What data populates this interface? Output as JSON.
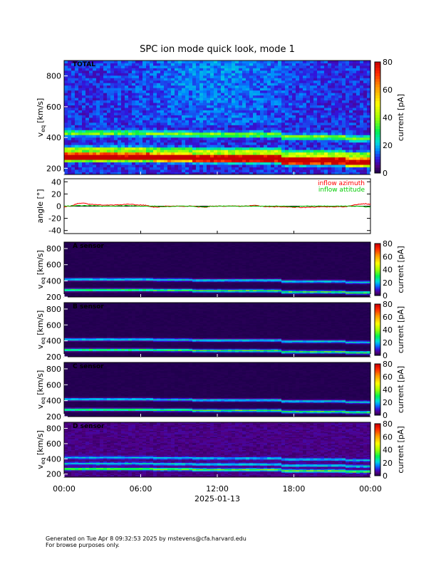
{
  "chart_data": {
    "type": "heatmap",
    "title": "SPC ion mode quick look, mode 1",
    "x_axis": {
      "label": "2025-01-13",
      "range_hours": [
        0,
        24
      ],
      "tick_hours": [
        0,
        6,
        12,
        18,
        24
      ],
      "tick_labels": [
        "00:00",
        "06:00",
        "12:00",
        "18:00",
        "00:00"
      ]
    },
    "panels": [
      {
        "id": "total",
        "type": "heatmap",
        "label": "TOTAL",
        "ylabel": "v",
        "ylabel_sub": "eq",
        "ylabel_unit": "[km/s]",
        "ylim": [
          160,
          900
        ],
        "yticks": [
          200,
          400,
          600,
          800
        ],
        "colorbar": {
          "label": "current [pA]",
          "range": [
            0,
            80
          ],
          "ticks": [
            0,
            20,
            40,
            60,
            80
          ]
        },
        "bands": [
          {
            "v": 265,
            "level": 76
          },
          {
            "v": 290,
            "level": 64
          },
          {
            "v": 325,
            "level": 32
          },
          {
            "v": 430,
            "level": 28
          }
        ],
        "background_level": 11
      },
      {
        "id": "angle",
        "type": "line",
        "ylabel": "angle [°]",
        "ylim": [
          -45,
          45
        ],
        "yticks": [
          -40,
          -20,
          0,
          20,
          40
        ],
        "series": [
          {
            "name": "inflow azimuth",
            "color": "#ff0000",
            "x": [
              0,
              0.5,
              1,
              1.5,
              2,
              3,
              4,
              5,
              6,
              6.5,
              7,
              7.5,
              8,
              9,
              10,
              11,
              11.5,
              12,
              13,
              14,
              15,
              16,
              17,
              18,
              19,
              20,
              21,
              22,
              22.5,
              23,
              23.5,
              24
            ],
            "y": [
              -1,
              0,
              4,
              5,
              3,
              2,
              2,
              3,
              2,
              1,
              -2,
              -1,
              0,
              0,
              0,
              -2,
              0,
              0,
              0,
              0,
              1,
              -1,
              -1,
              -2,
              -2,
              -1,
              -1,
              -1,
              1,
              3,
              4,
              3
            ]
          },
          {
            "name": "inflow attitude",
            "color": "#00cc00",
            "x": [
              0,
              1,
              2,
              3,
              4,
              5,
              6,
              7,
              8,
              9,
              10,
              11,
              12,
              13,
              14,
              15,
              16,
              17,
              18,
              19,
              20,
              21,
              22,
              23,
              24
            ],
            "y": [
              0,
              1,
              1,
              0,
              0,
              1,
              0,
              0,
              -1,
              0,
              0,
              -1,
              0,
              0,
              0,
              0,
              0,
              0,
              -1,
              0,
              0,
              0,
              0,
              0,
              -2
            ]
          }
        ]
      },
      {
        "id": "sensor-a",
        "type": "heatmap",
        "label": "A sensor",
        "ylabel": "v",
        "ylabel_sub": "eq",
        "ylabel_unit": "[km/s]",
        "ylim": [
          200,
          880
        ],
        "yticks": [
          200,
          400,
          600,
          800
        ],
        "colorbar": {
          "label": "current [pA]",
          "range": [
            0,
            80
          ],
          "ticks": [
            0,
            20,
            40,
            60,
            80
          ]
        },
        "bands": [
          {
            "v": 290,
            "level": 32
          },
          {
            "v": 420,
            "level": 22
          }
        ],
        "background_level": 1
      },
      {
        "id": "sensor-b",
        "type": "heatmap",
        "label": "B sensor",
        "ylabel": "v",
        "ylabel_sub": "eq",
        "ylabel_unit": "[km/s]",
        "ylim": [
          200,
          880
        ],
        "yticks": [
          200,
          400,
          600,
          800
        ],
        "colorbar": {
          "label": "current [pA]",
          "range": [
            0,
            80
          ],
          "ticks": [
            0,
            20,
            40,
            60,
            80
          ]
        },
        "bands": [
          {
            "v": 290,
            "level": 32
          },
          {
            "v": 420,
            "level": 22
          }
        ],
        "background_level": 1
      },
      {
        "id": "sensor-c",
        "type": "heatmap",
        "label": "C sensor",
        "ylabel": "v",
        "ylabel_sub": "eq",
        "ylabel_unit": "[km/s]",
        "ylim": [
          200,
          880
        ],
        "yticks": [
          200,
          400,
          600,
          800
        ],
        "colorbar": {
          "label": "current [pA]",
          "range": [
            0,
            80
          ],
          "ticks": [
            0,
            20,
            40,
            60,
            80
          ]
        },
        "bands": [
          {
            "v": 290,
            "level": 32
          },
          {
            "v": 420,
            "level": 22
          }
        ],
        "background_level": 1
      },
      {
        "id": "sensor-d",
        "type": "heatmap",
        "label": "D sensor",
        "ylabel": "v",
        "ylabel_sub": "eq",
        "ylabel_unit": "[km/s]",
        "ylim": [
          160,
          880
        ],
        "yticks": [
          200,
          400,
          600,
          800
        ],
        "colorbar": {
          "label": "current [pA]",
          "range": [
            0,
            80
          ],
          "ticks": [
            0,
            20,
            40,
            60,
            80
          ]
        },
        "bands": [
          {
            "v": 270,
            "level": 32
          },
          {
            "v": 340,
            "level": 18
          },
          {
            "v": 420,
            "level": 16
          }
        ],
        "background_level": 5
      }
    ]
  },
  "footer": {
    "line1": "Generated on Tue Apr  8 09:32:53 2025 by mstevens@cfa.harvard.edu",
    "line2": "For browse purposes only."
  }
}
